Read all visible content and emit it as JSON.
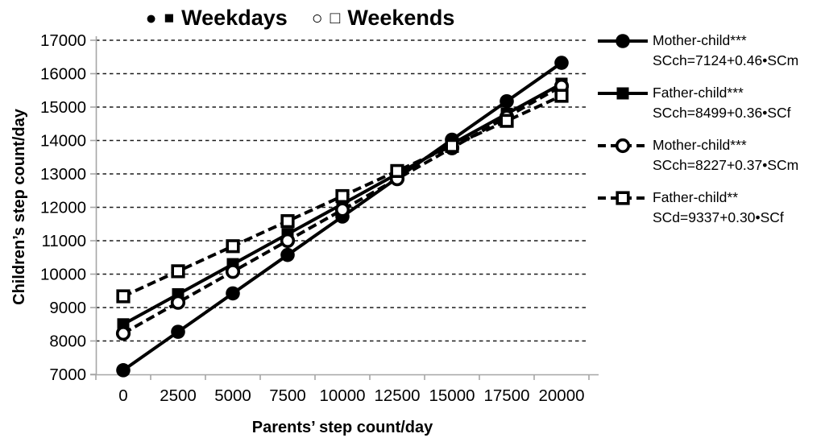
{
  "header": {
    "groups": [
      {
        "label": "Weekdays",
        "glyphs": [
          "●",
          "■"
        ]
      },
      {
        "label": "Weekends",
        "glyphs": [
          "○",
          "□"
        ]
      }
    ]
  },
  "chart_data": {
    "type": "line",
    "title": "● ■ Weekdays   ○ □ Weekends",
    "xlabel": "Parents’ step count/day",
    "ylabel": "Children’s step count/day",
    "x": [
      0,
      2500,
      5000,
      7500,
      10000,
      12500,
      15000,
      17500,
      20000
    ],
    "xtick_labels": [
      "0",
      "2500",
      "5000",
      "7500",
      "10000",
      "12500",
      "15000",
      "17500",
      "20000"
    ],
    "yticks": [
      7000,
      8000,
      9000,
      10000,
      11000,
      12000,
      13000,
      14000,
      15000,
      16000,
      17000
    ],
    "ylim": [
      7000,
      17000
    ],
    "grid": "horizontal-dashed",
    "legend_position": "right",
    "series": [
      {
        "name": "Mother-child***",
        "equation": "SCch=7124+0.46•SCm",
        "group": "Weekdays",
        "line": "solid",
        "marker": "filled-circle",
        "intercept": 7124,
        "slope": 0.46,
        "values": [
          7124,
          8274,
          9424,
          10574,
          11724,
          12874,
          14024,
          15174,
          16324
        ]
      },
      {
        "name": "Father-child***",
        "equation": "SCch=8499+0.36•SCf",
        "group": "Weekdays",
        "line": "solid",
        "marker": "filled-square",
        "intercept": 8499,
        "slope": 0.36,
        "values": [
          8499,
          9399,
          10299,
          11199,
          12099,
          12999,
          13899,
          14799,
          15699
        ]
      },
      {
        "name": "Mother-child***",
        "equation": "SCch=8227+0.37•SCm",
        "group": "Weekends",
        "line": "dashed",
        "marker": "open-circle",
        "intercept": 8227,
        "slope": 0.37,
        "values": [
          8227,
          9152,
          10077,
          11002,
          11927,
          12852,
          13777,
          14702,
          15627
        ]
      },
      {
        "name": "Father-child**",
        "equation": "SCd=9337+0.30•SCf",
        "group": "Weekends",
        "line": "dashed",
        "marker": "open-square",
        "intercept": 9337,
        "slope": 0.3,
        "values": [
          9337,
          10087,
          10837,
          11587,
          12337,
          13087,
          13837,
          14587,
          15337
        ]
      }
    ],
    "colors": {
      "series": "#000000",
      "gridline": "#1a1a1a",
      "axis": "#a6a6a6",
      "text": "#000000",
      "background": "#ffffff"
    }
  }
}
